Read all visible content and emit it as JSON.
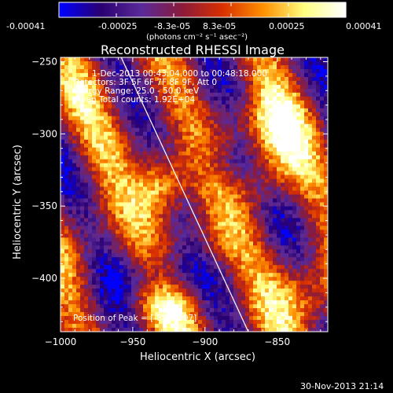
{
  "colorbar": {
    "tick_labels": [
      "-0.00041",
      "-0.00025",
      "-8.3e-05",
      "8.3e-05",
      "0.00025",
      "0.00041"
    ],
    "unit_label": "(photons cm⁻² s⁻¹ asec⁻²)",
    "range": [
      -0.00041,
      0.00041
    ],
    "colormap": [
      "#0000ff",
      "#2a0070",
      "#5a2a9a",
      "#8a1a3a",
      "#d83000",
      "#ff9000",
      "#ffff80",
      "#ffffff"
    ]
  },
  "chart_data": {
    "type": "heatmap",
    "title": "Reconstructed RHESSI Image",
    "xlabel": "Heliocentric X (arcsec)",
    "ylabel": "Heliocentric Y (arcsec)",
    "xlim": [
      -1000,
      -815
    ],
    "ylim": [
      -437,
      -247
    ],
    "x_ticks": [
      -1000,
      -950,
      -900,
      -850
    ],
    "y_ticks": [
      -250,
      -300,
      -350,
      -400
    ],
    "limb_line": {
      "x": [
        -958,
        -870
      ],
      "y": [
        -247,
        -437
      ]
    },
    "peak": {
      "x": -858,
      "y": -297
    },
    "annotations": {
      "time_range": "1-Dec-2013 00:43:04.000 to 00:48:18.000",
      "detectors": "Detectors: 3F 5F 6F 7F 8F 9F, Att 0",
      "energy": "Energy Range: 25.0 - 50.0 keV",
      "clean": "Clean     Total counts: 1.92E+04",
      "peak_label": "Position of Peak = [-858,-297]"
    }
  },
  "footer": {
    "timestamp": "30-Nov-2013 21:14"
  }
}
